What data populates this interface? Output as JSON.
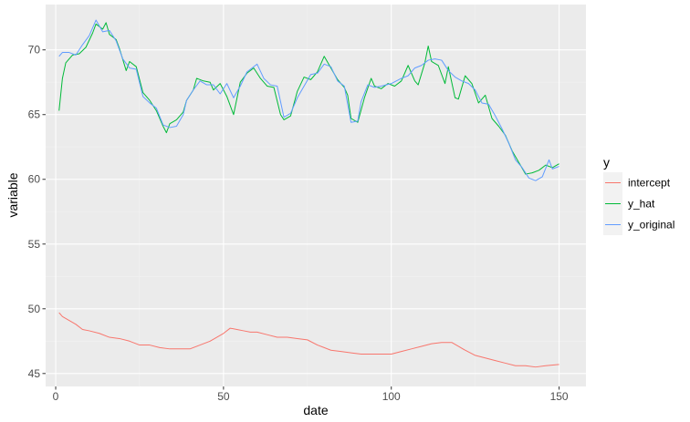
{
  "chart_data": {
    "type": "line",
    "xlabel": "date",
    "ylabel": "variable",
    "xlim": [
      -3,
      158
    ],
    "ylim": [
      44,
      73.5
    ],
    "x_ticks": [
      0,
      50,
      100,
      150
    ],
    "y_ticks": [
      45,
      50,
      55,
      60,
      65,
      70
    ],
    "grid": true,
    "legend": {
      "title": "y",
      "position": "right"
    },
    "series": [
      {
        "name": "intercept",
        "color": "#F8766D",
        "points": [
          [
            1,
            49.7
          ],
          [
            2,
            49.4
          ],
          [
            4,
            49.1
          ],
          [
            6,
            48.8
          ],
          [
            8,
            48.4
          ],
          [
            10,
            48.3
          ],
          [
            13,
            48.1
          ],
          [
            16,
            47.8
          ],
          [
            19,
            47.7
          ],
          [
            22,
            47.5
          ],
          [
            25,
            47.2
          ],
          [
            28,
            47.2
          ],
          [
            31,
            47.0
          ],
          [
            34,
            46.9
          ],
          [
            37,
            46.9
          ],
          [
            40,
            46.9
          ],
          [
            43,
            47.2
          ],
          [
            46,
            47.5
          ],
          [
            48,
            47.8
          ],
          [
            50,
            48.1
          ],
          [
            52,
            48.5
          ],
          [
            54,
            48.4
          ],
          [
            56,
            48.3
          ],
          [
            58,
            48.2
          ],
          [
            60,
            48.2
          ],
          [
            63,
            48.0
          ],
          [
            66,
            47.8
          ],
          [
            69,
            47.8
          ],
          [
            72,
            47.7
          ],
          [
            75,
            47.6
          ],
          [
            78,
            47.2
          ],
          [
            80,
            47.0
          ],
          [
            82,
            46.8
          ],
          [
            85,
            46.7
          ],
          [
            88,
            46.6
          ],
          [
            91,
            46.5
          ],
          [
            94,
            46.5
          ],
          [
            97,
            46.5
          ],
          [
            100,
            46.5
          ],
          [
            103,
            46.7
          ],
          [
            106,
            46.9
          ],
          [
            109,
            47.1
          ],
          [
            112,
            47.3
          ],
          [
            115,
            47.4
          ],
          [
            118,
            47.4
          ],
          [
            120,
            47.1
          ],
          [
            122,
            46.8
          ],
          [
            125,
            46.4
          ],
          [
            128,
            46.2
          ],
          [
            131,
            46.0
          ],
          [
            134,
            45.8
          ],
          [
            137,
            45.6
          ],
          [
            140,
            45.6
          ],
          [
            143,
            45.5
          ],
          [
            146,
            45.6
          ],
          [
            150,
            45.7
          ]
        ]
      },
      {
        "name": "y_hat",
        "color": "#00BA38",
        "points": [
          [
            1,
            65.3
          ],
          [
            2,
            67.8
          ],
          [
            3,
            69.0
          ],
          [
            5,
            69.6
          ],
          [
            7,
            69.7
          ],
          [
            9,
            70.2
          ],
          [
            11,
            71.3
          ],
          [
            12,
            72.0
          ],
          [
            14,
            71.6
          ],
          [
            15,
            72.1
          ],
          [
            16,
            71.2
          ],
          [
            18,
            70.8
          ],
          [
            19,
            70.1
          ],
          [
            21,
            68.4
          ],
          [
            22,
            69.1
          ],
          [
            24,
            68.7
          ],
          [
            26,
            66.7
          ],
          [
            28,
            66.1
          ],
          [
            30,
            65.3
          ],
          [
            32,
            64.1
          ],
          [
            33,
            63.6
          ],
          [
            34,
            64.3
          ],
          [
            36,
            64.6
          ],
          [
            38,
            65.2
          ],
          [
            39,
            66.1
          ],
          [
            41,
            66.9
          ],
          [
            42,
            67.8
          ],
          [
            44,
            67.6
          ],
          [
            46,
            67.5
          ],
          [
            47,
            66.9
          ],
          [
            49,
            67.4
          ],
          [
            51,
            66.4
          ],
          [
            53,
            65.0
          ],
          [
            55,
            67.5
          ],
          [
            57,
            68.2
          ],
          [
            59,
            68.6
          ],
          [
            61,
            67.8
          ],
          [
            63,
            67.2
          ],
          [
            65,
            67.1
          ],
          [
            67,
            65.0
          ],
          [
            68,
            64.6
          ],
          [
            70,
            64.9
          ],
          [
            72,
            66.8
          ],
          [
            74,
            67.9
          ],
          [
            76,
            67.7
          ],
          [
            78,
            68.3
          ],
          [
            80,
            69.5
          ],
          [
            82,
            68.6
          ],
          [
            84,
            67.7
          ],
          [
            86,
            67.1
          ],
          [
            87,
            66.5
          ],
          [
            88,
            64.7
          ],
          [
            90,
            64.4
          ],
          [
            92,
            66.3
          ],
          [
            94,
            67.8
          ],
          [
            95,
            67.2
          ],
          [
            97,
            67.0
          ],
          [
            99,
            67.4
          ],
          [
            101,
            67.2
          ],
          [
            103,
            67.6
          ],
          [
            105,
            68.8
          ],
          [
            107,
            67.6
          ],
          [
            108,
            67.3
          ],
          [
            110,
            69.0
          ],
          [
            111,
            70.3
          ],
          [
            112,
            69.1
          ],
          [
            114,
            68.8
          ],
          [
            116,
            67.4
          ],
          [
            117,
            68.7
          ],
          [
            119,
            66.3
          ],
          [
            120,
            66.2
          ],
          [
            122,
            68.0
          ],
          [
            124,
            67.4
          ],
          [
            126,
            65.9
          ],
          [
            128,
            66.5
          ],
          [
            130,
            64.7
          ],
          [
            132,
            64.1
          ],
          [
            134,
            63.4
          ],
          [
            136,
            62.2
          ],
          [
            138,
            61.3
          ],
          [
            140,
            60.4
          ],
          [
            142,
            60.5
          ],
          [
            144,
            60.7
          ],
          [
            146,
            61.1
          ],
          [
            148,
            60.9
          ],
          [
            150,
            61.2
          ]
        ]
      },
      {
        "name": "y_original",
        "color": "#619CFF",
        "points": [
          [
            1,
            69.5
          ],
          [
            2,
            69.8
          ],
          [
            4,
            69.8
          ],
          [
            6,
            69.6
          ],
          [
            8,
            70.4
          ],
          [
            10,
            71.1
          ],
          [
            12,
            72.3
          ],
          [
            14,
            71.4
          ],
          [
            16,
            71.5
          ],
          [
            18,
            70.7
          ],
          [
            20,
            69.3
          ],
          [
            22,
            68.6
          ],
          [
            24,
            68.5
          ],
          [
            26,
            66.4
          ],
          [
            28,
            65.9
          ],
          [
            30,
            65.5
          ],
          [
            32,
            64.2
          ],
          [
            34,
            64.0
          ],
          [
            36,
            64.1
          ],
          [
            38,
            65.0
          ],
          [
            39,
            66.1
          ],
          [
            41,
            66.9
          ],
          [
            43,
            67.6
          ],
          [
            45,
            67.3
          ],
          [
            47,
            67.3
          ],
          [
            49,
            66.6
          ],
          [
            51,
            67.4
          ],
          [
            53,
            66.3
          ],
          [
            55,
            67.2
          ],
          [
            57,
            68.3
          ],
          [
            60,
            68.9
          ],
          [
            62,
            67.8
          ],
          [
            64,
            67.3
          ],
          [
            66,
            67.2
          ],
          [
            68,
            64.8
          ],
          [
            70,
            65.1
          ],
          [
            72,
            66.3
          ],
          [
            74,
            67.2
          ],
          [
            76,
            68.1
          ],
          [
            78,
            68.2
          ],
          [
            80,
            68.9
          ],
          [
            82,
            68.7
          ],
          [
            84,
            67.6
          ],
          [
            86,
            67.2
          ],
          [
            88,
            64.4
          ],
          [
            90,
            64.5
          ],
          [
            91,
            66.0
          ],
          [
            93,
            67.3
          ],
          [
            95,
            67.1
          ],
          [
            97,
            67.2
          ],
          [
            100,
            67.4
          ],
          [
            103,
            67.8
          ],
          [
            105,
            68.0
          ],
          [
            107,
            68.6
          ],
          [
            109,
            68.8
          ],
          [
            111,
            69.2
          ],
          [
            113,
            69.3
          ],
          [
            115,
            69.2
          ],
          [
            117,
            68.4
          ],
          [
            119,
            67.9
          ],
          [
            121,
            67.6
          ],
          [
            123,
            67.4
          ],
          [
            125,
            66.9
          ],
          [
            127,
            65.9
          ],
          [
            129,
            65.8
          ],
          [
            131,
            64.9
          ],
          [
            133,
            63.9
          ],
          [
            135,
            62.8
          ],
          [
            137,
            61.5
          ],
          [
            139,
            60.9
          ],
          [
            141,
            60.1
          ],
          [
            143,
            59.9
          ],
          [
            145,
            60.2
          ],
          [
            147,
            61.5
          ],
          [
            148,
            60.8
          ],
          [
            150,
            61.0
          ]
        ]
      }
    ]
  }
}
